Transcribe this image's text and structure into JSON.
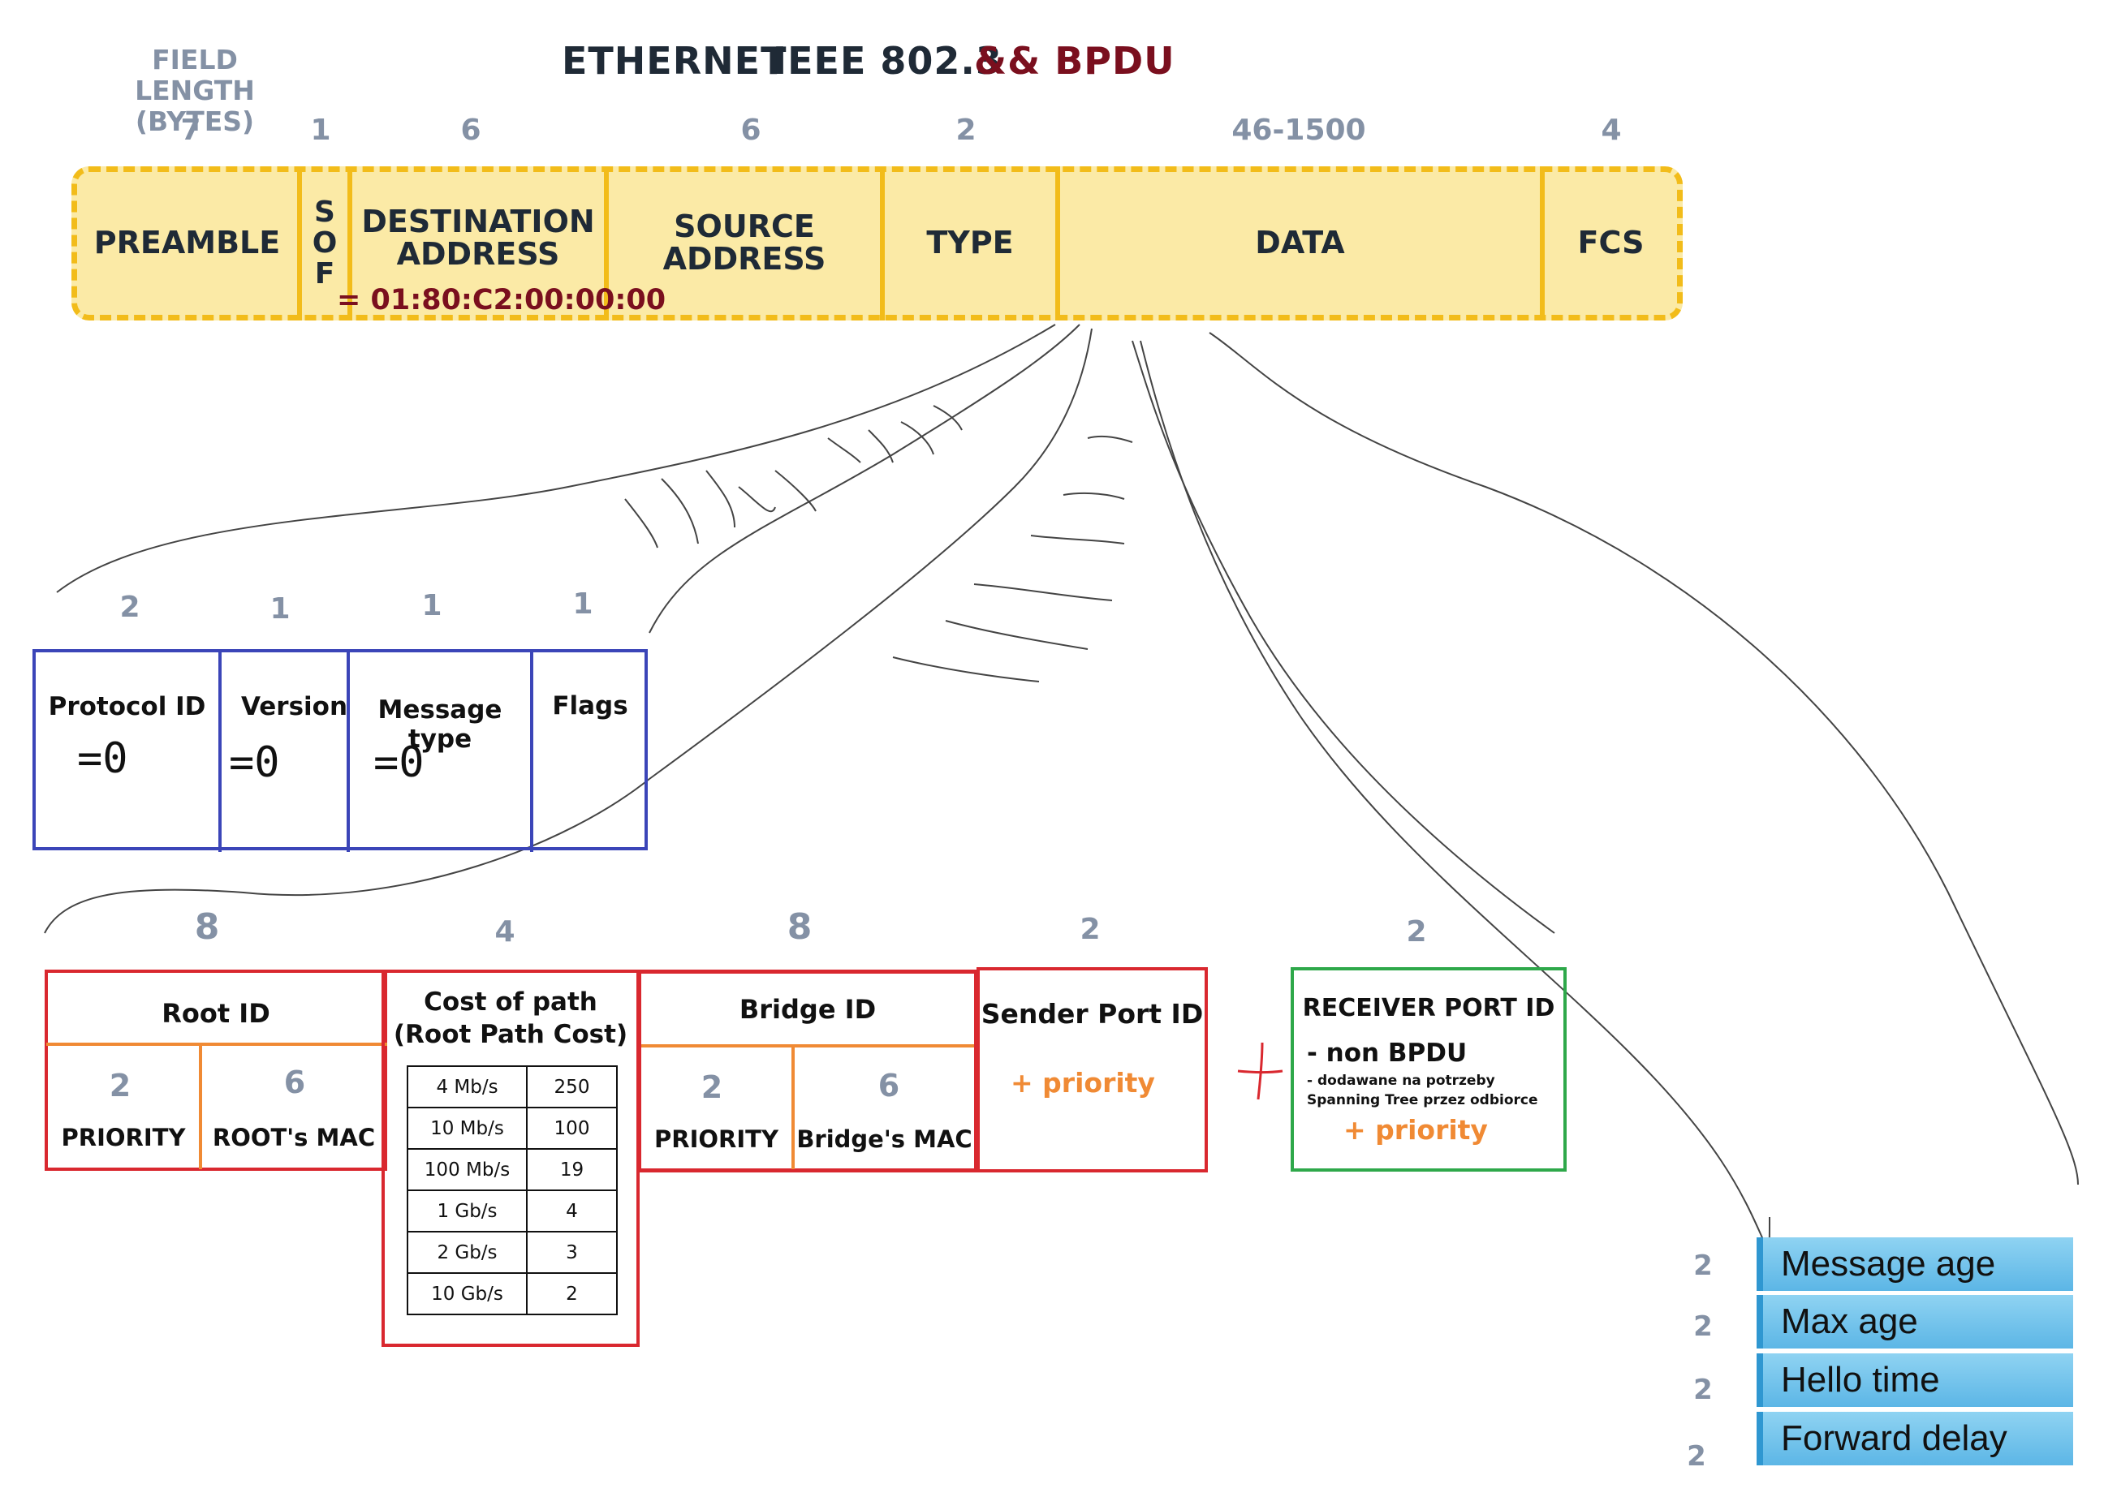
{
  "header": {
    "field_length_label": "FIELD LENGTH\n(BYTES)",
    "title_ethernet": "ETHERNET",
    "title_ieee": "IEEE 802.3",
    "title_bpdu": "&& BPDU",
    "accent_color": "#7a0f1e"
  },
  "frame": {
    "fields": [
      {
        "name": "PREAMBLE",
        "length": "7"
      },
      {
        "name": "S\nO\nF",
        "length": "1"
      },
      {
        "name": "DESTINATION\nADDRESS",
        "length": "6"
      },
      {
        "name": "SOURCE\nADDRESS",
        "length": "6"
      },
      {
        "name": "TYPE",
        "length": "2"
      },
      {
        "name": "DATA",
        "length": "46-1500"
      },
      {
        "name": "FCS",
        "length": "4"
      }
    ],
    "destination_value": "= 01:80:C2:00:00:00",
    "fill_color": "#fbeaa6",
    "border_color": "#f2bc1a"
  },
  "bpdu_header": {
    "fields": [
      {
        "name": "Protocol ID",
        "length": "2",
        "value": "=0"
      },
      {
        "name": "Version",
        "length": "1",
        "value": "=0"
      },
      {
        "name": "Message type",
        "length": "1",
        "value": "=0"
      },
      {
        "name": "Flags",
        "length": "1",
        "value": ""
      }
    ],
    "border_color": "#3b45b8"
  },
  "root_id": {
    "length": "8",
    "label": "Root ID",
    "sub": [
      {
        "length": "2",
        "label": "PRIORITY"
      },
      {
        "length": "6",
        "label": "ROOT's MAC"
      }
    ]
  },
  "cost_of_path": {
    "length": "4",
    "label": "Cost of path\n(Root Path Cost)",
    "table": [
      [
        "4 Mb/s",
        "250"
      ],
      [
        "10 Mb/s",
        "100"
      ],
      [
        "100 Mb/s",
        "19"
      ],
      [
        "1 Gb/s",
        "4"
      ],
      [
        "2 Gb/s",
        "3"
      ],
      [
        "10 Gb/s",
        "2"
      ]
    ]
  },
  "bridge_id": {
    "length": "8",
    "label": "Bridge ID",
    "sub": [
      {
        "length": "2",
        "label": "PRIORITY"
      },
      {
        "length": "6",
        "label": "Bridge's MAC"
      }
    ]
  },
  "sender_port": {
    "length": "2",
    "label": "Sender Port ID",
    "note": "+ priority"
  },
  "plus_sign": "+",
  "receiver_port": {
    "length": "2",
    "label": "RECEIVER PORT ID",
    "line1": "- non BPDU",
    "line2": "- dodawane na potrzeby",
    "line3": "Spanning Tree przez odbiorce",
    "note": "+ priority",
    "border_color": "#2ea84a"
  },
  "timers": [
    {
      "length": "2",
      "label": "Message age"
    },
    {
      "length": "2",
      "label": "Max age"
    },
    {
      "length": "2",
      "label": "Hello time"
    },
    {
      "length": "2",
      "label": "Forward delay"
    }
  ]
}
